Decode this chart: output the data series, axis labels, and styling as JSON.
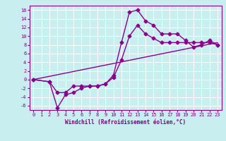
{
  "xlabel": "Windchill (Refroidissement éolien,°C)",
  "bg_color": "#c8eef0",
  "grid_color": "#ffffff",
  "line_color": "#8b008b",
  "xlim": [
    -0.5,
    23.5
  ],
  "ylim": [
    -7,
    17
  ],
  "yticks": [
    -6,
    -4,
    -2,
    0,
    2,
    4,
    6,
    8,
    10,
    12,
    14,
    16
  ],
  "xticks": [
    0,
    1,
    2,
    3,
    4,
    5,
    6,
    7,
    8,
    9,
    10,
    11,
    12,
    13,
    14,
    15,
    16,
    17,
    18,
    19,
    20,
    21,
    22,
    23
  ],
  "line1_x": [
    0,
    2,
    3,
    4,
    5,
    6,
    7,
    8,
    9,
    10,
    11,
    12,
    13,
    14,
    15,
    16,
    17,
    18,
    19,
    20,
    21,
    22,
    23
  ],
  "line1_y": [
    0,
    -0.5,
    -3.0,
    -3.0,
    -1.5,
    -1.5,
    -1.5,
    -1.5,
    -1.0,
    1.0,
    8.5,
    15.5,
    16.0,
    13.5,
    12.5,
    10.5,
    10.5,
    10.5,
    9.0,
    7.5,
    8.0,
    9.0,
    8.0
  ],
  "line2_x": [
    0,
    2,
    3,
    4,
    5,
    6,
    7,
    8,
    9,
    10,
    11,
    12,
    13,
    14,
    15,
    16,
    17,
    18,
    19,
    20,
    21,
    22,
    23
  ],
  "line2_y": [
    0,
    -0.5,
    -6.5,
    -3.5,
    -3.0,
    -2.0,
    -1.5,
    -1.5,
    -1.0,
    0.5,
    4.5,
    10.0,
    12.5,
    10.5,
    9.5,
    8.5,
    8.5,
    8.5,
    8.5,
    8.5,
    8.5,
    8.5,
    8.0
  ],
  "line3_x": [
    0,
    23
  ],
  "line3_y": [
    0,
    8.5
  ],
  "marker_size": 2.5,
  "linewidth": 1.0,
  "tick_color": "#800080",
  "label_fontsize": 5.0,
  "xlabel_fontsize": 5.5
}
